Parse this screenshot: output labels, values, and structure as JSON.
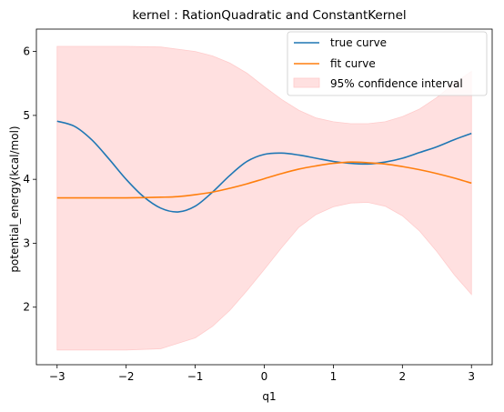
{
  "chart_data": {
    "type": "line",
    "title": "kernel : RationQuadratic and ConstantKernel",
    "xlabel": "q1",
    "ylabel": "potential_energy(kcal/mol)",
    "xlim": [
      -3.3,
      3.3
    ],
    "ylim": [
      1.1,
      6.35
    ],
    "xticks": [
      -3,
      -2,
      -1,
      0,
      1,
      2,
      3
    ],
    "yticks": [
      2,
      3,
      4,
      5,
      6
    ],
    "legend_position": "top-right",
    "grid": false,
    "series": [
      {
        "name": "true curve",
        "color": "#1f77b4",
        "kind": "line",
        "points": [
          [
            -3.0,
            4.91
          ],
          [
            -2.75,
            4.83
          ],
          [
            -2.5,
            4.62
          ],
          [
            -2.25,
            4.32
          ],
          [
            -2.0,
            4.0
          ],
          [
            -1.75,
            3.73
          ],
          [
            -1.5,
            3.55
          ],
          [
            -1.25,
            3.49
          ],
          [
            -1.0,
            3.58
          ],
          [
            -0.75,
            3.8
          ],
          [
            -0.5,
            4.06
          ],
          [
            -0.25,
            4.28
          ],
          [
            0.0,
            4.39
          ],
          [
            0.25,
            4.41
          ],
          [
            0.5,
            4.38
          ],
          [
            0.75,
            4.33
          ],
          [
            1.0,
            4.28
          ],
          [
            1.25,
            4.25
          ],
          [
            1.5,
            4.24
          ],
          [
            1.75,
            4.27
          ],
          [
            2.0,
            4.33
          ],
          [
            2.25,
            4.42
          ],
          [
            2.5,
            4.51
          ],
          [
            2.75,
            4.62
          ],
          [
            3.0,
            4.72
          ]
        ]
      },
      {
        "name": "fit curve",
        "color": "#ff7f0e",
        "kind": "line",
        "points": [
          [
            -3.0,
            3.71
          ],
          [
            -2.5,
            3.71
          ],
          [
            -2.0,
            3.71
          ],
          [
            -1.5,
            3.72
          ],
          [
            -1.25,
            3.73
          ],
          [
            -1.0,
            3.76
          ],
          [
            -0.75,
            3.8
          ],
          [
            -0.5,
            3.86
          ],
          [
            -0.25,
            3.93
          ],
          [
            0.0,
            4.01
          ],
          [
            0.25,
            4.09
          ],
          [
            0.5,
            4.16
          ],
          [
            0.75,
            4.21
          ],
          [
            1.0,
            4.25
          ],
          [
            1.25,
            4.27
          ],
          [
            1.5,
            4.26
          ],
          [
            1.75,
            4.24
          ],
          [
            2.0,
            4.2
          ],
          [
            2.25,
            4.15
          ],
          [
            2.5,
            4.09
          ],
          [
            2.75,
            4.02
          ],
          [
            3.0,
            3.94
          ]
        ]
      },
      {
        "name": "95% confidence interval",
        "color": "#ffcccc",
        "kind": "band",
        "x": [
          -3.0,
          -2.5,
          -2.0,
          -1.5,
          -1.0,
          -0.75,
          -0.5,
          -0.25,
          0.0,
          0.25,
          0.5,
          0.75,
          1.0,
          1.25,
          1.5,
          1.75,
          2.0,
          2.25,
          2.5,
          2.75,
          3.0
        ],
        "upper": [
          6.08,
          6.08,
          6.08,
          6.07,
          6.0,
          5.93,
          5.82,
          5.66,
          5.45,
          5.25,
          5.08,
          4.96,
          4.9,
          4.87,
          4.87,
          4.9,
          4.98,
          5.1,
          5.28,
          5.5,
          5.69
        ],
        "lower": [
          1.33,
          1.33,
          1.33,
          1.35,
          1.52,
          1.7,
          1.95,
          2.26,
          2.59,
          2.93,
          3.25,
          3.45,
          3.57,
          3.63,
          3.64,
          3.58,
          3.43,
          3.19,
          2.87,
          2.51,
          2.2
        ]
      }
    ]
  }
}
